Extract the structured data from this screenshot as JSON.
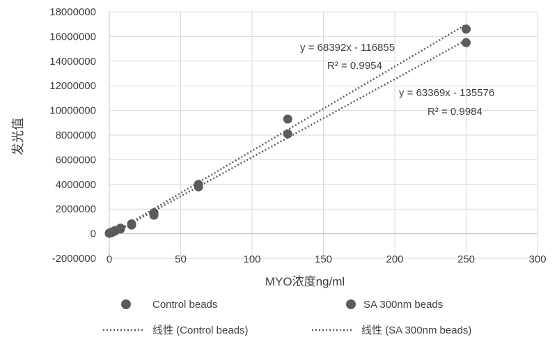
{
  "chart_data": {
    "type": "scatter",
    "title": "",
    "xlabel": "MYO浓度ng/ml",
    "ylabel": "发光值",
    "xlim": [
      0,
      300
    ],
    "ylim": [
      -2000000,
      18000000
    ],
    "x_ticks": [
      "0",
      "50",
      "100",
      "150",
      "200",
      "250",
      "300"
    ],
    "y_ticks": [
      "-2000000",
      "0",
      "2000000",
      "4000000",
      "6000000",
      "8000000",
      "10000000",
      "12000000",
      "14000000",
      "16000000",
      "18000000"
    ],
    "grid": true,
    "legend_position": "bottom",
    "series": [
      {
        "name": "Control beads",
        "color": "#5b5b5b",
        "x": [
          0,
          1.95,
          3.9,
          7.8,
          15.6,
          31.25,
          62.5,
          125,
          250
        ],
        "y": [
          50000,
          150000,
          250000,
          450000,
          800000,
          1700000,
          4000000,
          9300000,
          16600000
        ]
      },
      {
        "name": "SA 300nm beads",
        "color": "#5b5b5b",
        "x": [
          0,
          1.95,
          3.9,
          7.8,
          15.6,
          31.25,
          62.5,
          125,
          250
        ],
        "y": [
          30000,
          100000,
          200000,
          380000,
          700000,
          1500000,
          3800000,
          8100000,
          15500000
        ]
      }
    ],
    "trendlines": [
      {
        "name": "线性 (Control beads)",
        "slope": 68392,
        "intercept": -116855,
        "x_range": [
          0,
          250
        ],
        "equation": "y = 68392x - 116855",
        "r2": "R² = 0.9954"
      },
      {
        "name": "线性 (SA 300nm beads)",
        "slope": 63369,
        "intercept": -135576,
        "x_range": [
          0,
          250
        ],
        "equation": "y = 63369x - 135576",
        "r2": "R² = 0.9984"
      }
    ]
  }
}
